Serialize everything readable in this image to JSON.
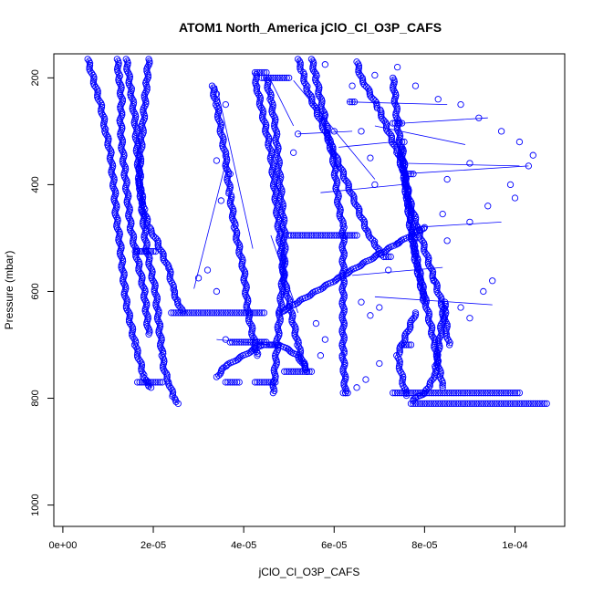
{
  "chart_data": {
    "type": "scatter",
    "title": "ATOM1 North_America jClO_Cl_O3P_CAFS",
    "xlabel": "jClO_Cl_O3P_CAFS",
    "ylabel": "Pressure (mbar)",
    "xlim": [
      -2e-06,
      0.000111
    ],
    "ylim": [
      1040,
      155
    ],
    "y_reversed": true,
    "x_ticks": [
      0,
      2e-05,
      4e-05,
      6e-05,
      8e-05,
      0.0001
    ],
    "x_tick_labels": [
      "0e+00",
      "2e-05",
      "4e-05",
      "6e-05",
      "8e-05",
      "1e-04"
    ],
    "y_ticks": [
      200,
      400,
      600,
      800,
      1000
    ],
    "y_tick_labels": [
      "200",
      "400",
      "600",
      "800",
      "1000"
    ],
    "grid": false,
    "marker": "open-circle",
    "color": "#0000ff",
    "series": [
      {
        "x": [
          5.5e-06,
          7e-06,
          8.5e-06,
          9.5e-06,
          1.05e-05,
          1.1e-05,
          1.15e-05,
          1.18e-05,
          1.25e-05,
          1.3e-05,
          1.35e-05,
          1.4e-05,
          1.5e-05,
          1.6e-05,
          1.7e-05,
          1.8e-05,
          1.9e-05,
          1.95e-05
        ],
        "y": [
          165,
          210,
          255,
          300,
          340,
          380,
          420,
          460,
          500,
          540,
          580,
          620,
          660,
          700,
          730,
          760,
          775,
          780
        ]
      },
      {
        "x": [
          1.2e-05,
          1.25e-05,
          1.3e-05,
          1.28e-05,
          1.3e-05,
          1.35e-05,
          1.4e-05,
          1.45e-05,
          1.5e-05,
          1.6e-05,
          1.7e-05,
          1.8e-05,
          1.85e-05,
          1.9e-05
        ],
        "y": [
          165,
          200,
          240,
          280,
          320,
          360,
          400,
          440,
          480,
          520,
          560,
          600,
          640,
          680
        ]
      },
      {
        "x": [
          1.9e-05,
          1.85e-05,
          1.8e-05,
          1.75e-05,
          1.7e-05,
          1.7e-05,
          1.75e-05,
          1.8e-05,
          1.85e-05,
          1.95e-05,
          2.05e-05,
          2.1e-05,
          2.15e-05,
          2.2e-05,
          2.25e-05,
          2.35e-05,
          2.4e-05,
          2.45e-05,
          2.55e-05
        ],
        "y": [
          165,
          210,
          260,
          310,
          360,
          400,
          440,
          480,
          520,
          560,
          600,
          640,
          680,
          720,
          750,
          770,
          785,
          800,
          810
        ]
      },
      {
        "x": [
          1.4e-05,
          1.5e-05,
          1.6e-05,
          1.65e-05,
          1.7e-05,
          1.8e-05,
          1.9e-05,
          2.05e-05,
          2.15e-05,
          2.25e-05,
          2.35e-05,
          2.4e-05,
          2.45e-05,
          2.55e-05,
          2.6e-05,
          2.65e-05
        ],
        "y": [
          165,
          220,
          280,
          340,
          400,
          450,
          480,
          500,
          520,
          540,
          560,
          580,
          600,
          620,
          630,
          640
        ]
      },
      {
        "x": [
          3.3e-05,
          3.4e-05,
          3.5e-05,
          3.6e-05,
          3.7e-05,
          3.8e-05,
          3.9e-05,
          4e-05,
          4.05e-05,
          4.1e-05,
          4.2e-05,
          4.3e-05
        ],
        "y": [
          215,
          250,
          300,
          350,
          420,
          480,
          520,
          560,
          600,
          640,
          680,
          720
        ]
      },
      {
        "x": [
          4.25e-05,
          4.3e-05,
          4.4e-05,
          4.5e-05,
          4.6e-05,
          4.65e-05,
          4.7e-05,
          4.75e-05,
          4.8e-05,
          4.85e-05,
          4.9e-05,
          5e-05,
          5.1e-05,
          5.2e-05,
          5.3e-05,
          5.4e-05
        ],
        "y": [
          190,
          220,
          260,
          300,
          340,
          380,
          420,
          460,
          500,
          540,
          580,
          620,
          660,
          700,
          730,
          750
        ]
      },
      {
        "x": [
          4.5e-05,
          4.6e-05,
          4.7e-05,
          4.75e-05,
          4.8e-05,
          4.85e-05,
          4.9e-05,
          4.9e-05,
          4.85e-05,
          4.8e-05,
          4.75e-05,
          4.7e-05,
          4.65e-05
        ],
        "y": [
          200,
          240,
          290,
          340,
          390,
          440,
          490,
          540,
          590,
          640,
          690,
          740,
          790
        ]
      },
      {
        "x": [
          5.5e-05,
          5.6e-05,
          5.7e-05,
          5.8e-05,
          5.9e-05,
          6e-05,
          6.05e-05,
          6.1e-05,
          6.2e-05,
          6.2e-05,
          6.2e-05,
          6.2e-05,
          6.2e-05,
          6.25e-05
        ],
        "y": [
          165,
          200,
          240,
          280,
          320,
          360,
          400,
          440,
          480,
          540,
          600,
          660,
          720,
          790
        ]
      },
      {
        "x": [
          5.2e-05,
          5.3e-05,
          5.4e-05,
          5.55e-05,
          5.7e-05,
          5.85e-05,
          6e-05,
          6.15e-05,
          6.3e-05,
          6.45e-05,
          6.6e-05,
          6.75e-05,
          6.9e-05,
          7e-05,
          7.1e-05
        ],
        "y": [
          165,
          190,
          220,
          250,
          280,
          310,
          340,
          370,
          400,
          430,
          460,
          490,
          510,
          525,
          535
        ]
      },
      {
        "x": [
          6.5e-05,
          6.6e-05,
          6.8e-05,
          7e-05,
          7.2e-05,
          7.4e-05,
          7.55e-05,
          7.6e-05,
          7.7e-05,
          7.75e-05,
          7.8e-05,
          7.9e-05,
          8e-05
        ],
        "y": [
          170,
          200,
          230,
          260,
          300,
          340,
          380,
          420,
          460,
          500,
          540,
          580,
          620
        ]
      },
      {
        "x": [
          7.5e-05,
          7.55e-05,
          7.6e-05,
          7.65e-05,
          7.7e-05,
          7.8e-05,
          7.9e-05,
          8e-05,
          8.1e-05,
          8.2e-05,
          8.3e-05,
          8.35e-05,
          8.4e-05
        ],
        "y": [
          330,
          370,
          410,
          450,
          490,
          530,
          570,
          610,
          650,
          690,
          730,
          760,
          780
        ]
      },
      {
        "x": [
          7.3e-05,
          7.35e-05,
          7.4e-05,
          7.45e-05,
          7.5e-05,
          7.6e-05,
          7.7e-05,
          7.85e-05,
          8e-05,
          8.15e-05,
          8.3e-05,
          8.45e-05,
          8.5e-05,
          8.55e-05
        ],
        "y": [
          200,
          240,
          280,
          320,
          360,
          400,
          440,
          480,
          520,
          560,
          600,
          640,
          680,
          700
        ]
      },
      {
        "x": [
          8.45e-05,
          8.4e-05,
          8.35e-05,
          8.3e-05,
          8.25e-05,
          8.2e-05,
          8.1e-05,
          8e-05,
          7.9e-05,
          7.8e-05,
          7.75e-05
        ],
        "y": [
          620,
          650,
          680,
          710,
          740,
          760,
          780,
          790,
          795,
          800,
          805
        ]
      },
      {
        "x": [
          7.8e-05,
          7.7e-05,
          7.6e-05,
          7.5e-05,
          7.4e-05,
          7.45e-05,
          7.5e-05,
          7.55e-05,
          7.6e-05
        ],
        "y": [
          640,
          660,
          680,
          700,
          720,
          740,
          760,
          780,
          795
        ]
      },
      {
        "x": [
          3.4e-05,
          3.6e-05,
          4e-05,
          4.4e-05,
          4.8e-05,
          5.2e-05,
          5.4e-05
        ],
        "y": [
          760,
          740,
          720,
          700,
          700,
          720,
          750
        ]
      },
      {
        "x": [
          4.8e-05,
          5.2e-05,
          5.6e-05,
          6e-05,
          6.4e-05,
          6.8e-05,
          7.2e-05,
          7.6e-05,
          8e-05
        ],
        "y": [
          640,
          620,
          600,
          580,
          560,
          540,
          520,
          500,
          480
        ]
      }
    ],
    "horizontal_segments": [
      {
        "y": 640,
        "x": [
          2.4e-05,
          2.6e-05,
          3e-05,
          3.4e-05,
          3.8e-05,
          4.2e-05,
          4.45e-05
        ]
      },
      {
        "y": 525,
        "x": [
          1.6e-05,
          1.7e-05,
          1.8e-05,
          1.9e-05,
          2.05e-05
        ]
      },
      {
        "y": 770,
        "x": [
          1.65e-05,
          1.75e-05,
          1.9e-05,
          2.05e-05,
          2.2e-05
        ]
      },
      {
        "y": 770,
        "x": [
          3.6e-05,
          3.7e-05,
          3.8e-05,
          3.9e-05
        ]
      },
      {
        "y": 770,
        "x": [
          4.25e-05,
          4.35e-05,
          4.45e-05,
          4.55e-05,
          4.7e-05
        ]
      },
      {
        "y": 750,
        "x": [
          4.9e-05,
          5e-05,
          5.1e-05,
          5.2e-05,
          5.3e-05,
          5.5e-05
        ]
      },
      {
        "y": 695,
        "x": [
          3.7e-05,
          3.9e-05,
          4.1e-05,
          4.3e-05,
          4.5e-05
        ]
      },
      {
        "y": 200,
        "x": [
          4.4e-05,
          4.55e-05,
          4.7e-05,
          4.85e-05,
          5e-05
        ]
      },
      {
        "y": 190,
        "x": [
          4.3e-05,
          4.4e-05,
          4.5e-05
        ]
      },
      {
        "y": 495,
        "x": [
          5e-05,
          5.3e-05,
          5.6e-05,
          5.9e-05,
          6.2e-05,
          6.5e-05
        ]
      },
      {
        "y": 535,
        "x": [
          7.1e-05,
          7.15e-05,
          7.2e-05,
          7.25e-05
        ]
      },
      {
        "y": 700,
        "x": [
          7.5e-05,
          7.6e-05,
          7.7e-05
        ]
      },
      {
        "y": 380,
        "x": [
          7.65e-05,
          7.7e-05,
          7.75e-05
        ]
      },
      {
        "y": 285,
        "x": [
          7.3e-05,
          7.4e-05,
          7.5e-05
        ]
      },
      {
        "y": 320,
        "x": [
          7.45e-05,
          7.55e-05
        ]
      },
      {
        "y": 245,
        "x": [
          6.35e-05,
          6.45e-05
        ]
      },
      {
        "y": 790,
        "x": [
          6.2e-05,
          6.25e-05,
          6.3e-05
        ]
      },
      {
        "y": 790,
        "x": [
          7.3e-05,
          7.5e-05,
          7.7e-05,
          7.9e-05,
          8.1e-05,
          8.3e-05,
          8.5e-05,
          8.7e-05,
          8.9e-05,
          9.1e-05,
          9.3e-05,
          9.5e-05,
          9.7e-05,
          9.9e-05,
          0.000101
        ]
      },
      {
        "y": 810,
        "x": [
          7.7e-05,
          7.9e-05,
          8.1e-05,
          8.3e-05,
          8.5e-05,
          8.7e-05,
          8.9e-05,
          9.1e-05,
          9.3e-05,
          9.5e-05,
          9.7e-05,
          9.9e-05,
          0.000101,
          0.000103,
          0.000105,
          0.000107
        ]
      }
    ],
    "scatter_points": [
      {
        "x": 7.8e-05,
        "y": 215
      },
      {
        "x": 8.3e-05,
        "y": 240
      },
      {
        "x": 8.8e-05,
        "y": 250
      },
      {
        "x": 9.2e-05,
        "y": 275
      },
      {
        "x": 9.7e-05,
        "y": 300
      },
      {
        "x": 0.000101,
        "y": 320
      },
      {
        "x": 0.000104,
        "y": 345
      },
      {
        "x": 0.000103,
        "y": 365
      },
      {
        "x": 9e-05,
        "y": 360
      },
      {
        "x": 8.5e-05,
        "y": 390
      },
      {
        "x": 9.9e-05,
        "y": 400
      },
      {
        "x": 0.0001,
        "y": 425
      },
      {
        "x": 9.4e-05,
        "y": 440
      },
      {
        "x": 9e-05,
        "y": 470
      },
      {
        "x": 8.5e-05,
        "y": 505
      },
      {
        "x": 9.5e-05,
        "y": 580
      },
      {
        "x": 9.3e-05,
        "y": 600
      },
      {
        "x": 8.8e-05,
        "y": 630
      },
      {
        "x": 9e-05,
        "y": 650
      },
      {
        "x": 7e-05,
        "y": 630
      },
      {
        "x": 6.8e-05,
        "y": 645
      },
      {
        "x": 6.6e-05,
        "y": 620
      },
      {
        "x": 7.2e-05,
        "y": 560
      },
      {
        "x": 7.4e-05,
        "y": 510
      },
      {
        "x": 6.9e-05,
        "y": 400
      },
      {
        "x": 6.8e-05,
        "y": 350
      },
      {
        "x": 6.6e-05,
        "y": 300
      },
      {
        "x": 6e-05,
        "y": 300
      },
      {
        "x": 5.8e-05,
        "y": 270
      },
      {
        "x": 5.2e-05,
        "y": 305
      },
      {
        "x": 5.1e-05,
        "y": 340
      },
      {
        "x": 3.2e-05,
        "y": 560
      },
      {
        "x": 3.4e-05,
        "y": 600
      },
      {
        "x": 3e-05,
        "y": 575
      },
      {
        "x": 3.6e-05,
        "y": 690
      },
      {
        "x": 5.6e-05,
        "y": 660
      },
      {
        "x": 5.8e-05,
        "y": 690
      },
      {
        "x": 5.7e-05,
        "y": 720
      },
      {
        "x": 6.5e-05,
        "y": 780
      },
      {
        "x": 6.7e-05,
        "y": 765
      },
      {
        "x": 7e-05,
        "y": 735
      },
      {
        "x": 3.4e-05,
        "y": 355
      },
      {
        "x": 3.7e-05,
        "y": 380
      },
      {
        "x": 3.5e-05,
        "y": 430
      },
      {
        "x": 3.6e-05,
        "y": 250
      },
      {
        "x": 3.4e-05,
        "y": 230
      },
      {
        "x": 6.4e-05,
        "y": 215
      },
      {
        "x": 6.9e-05,
        "y": 195
      },
      {
        "x": 7.4e-05,
        "y": 180
      },
      {
        "x": 5.8e-05,
        "y": 175
      },
      {
        "x": 8.4e-05,
        "y": 455
      },
      {
        "x": 8.2e-05,
        "y": 580
      }
    ],
    "connector_lines": [
      {
        "x": [
          3.4e-05,
          4.2e-05
        ],
        "y": [
          215,
          520
        ]
      },
      {
        "x": [
          3.6e-05,
          2.9e-05
        ],
        "y": [
          360,
          595
        ]
      },
      {
        "x": [
          5.1e-05,
          6.9e-05
        ],
        "y": [
          205,
          390
        ]
      },
      {
        "x": [
          6.9e-05,
          8.9e-05
        ],
        "y": [
          290,
          325
        ]
      },
      {
        "x": [
          7.5e-05,
          9.4e-05
        ],
        "y": [
          285,
          275
        ]
      },
      {
        "x": [
          7.6e-05,
          0.000101
        ],
        "y": [
          360,
          365
        ]
      },
      {
        "x": [
          7.5e-05,
          0.000103
        ],
        "y": [
          380,
          365
        ]
      },
      {
        "x": [
          6.3e-05,
          8.5e-05
        ],
        "y": [
          245,
          250
        ]
      },
      {
        "x": [
          7.8e-05,
          9.7e-05
        ],
        "y": [
          480,
          470
        ]
      },
      {
        "x": [
          6.9e-05,
          9.5e-05
        ],
        "y": [
          610,
          625
        ]
      },
      {
        "x": [
          6.4e-05,
          8.4e-05
        ],
        "y": [
          570,
          555
        ]
      },
      {
        "x": [
          5.7e-05,
          7.5e-05
        ],
        "y": [
          415,
          400
        ]
      },
      {
        "x": [
          5.2e-05,
          6.4e-05
        ],
        "y": [
          305,
          300
        ]
      },
      {
        "x": [
          6.1e-05,
          7.3e-05
        ],
        "y": [
          330,
          320
        ]
      },
      {
        "x": [
          4.6e-05,
          5.2e-05
        ],
        "y": [
          495,
          640
        ]
      },
      {
        "x": [
          3.4e-05,
          4.6e-05
        ],
        "y": [
          690,
          700
        ]
      },
      {
        "x": [
          4.6e-05,
          5.1e-05
        ],
        "y": [
          205,
          290
        ]
      }
    ]
  }
}
